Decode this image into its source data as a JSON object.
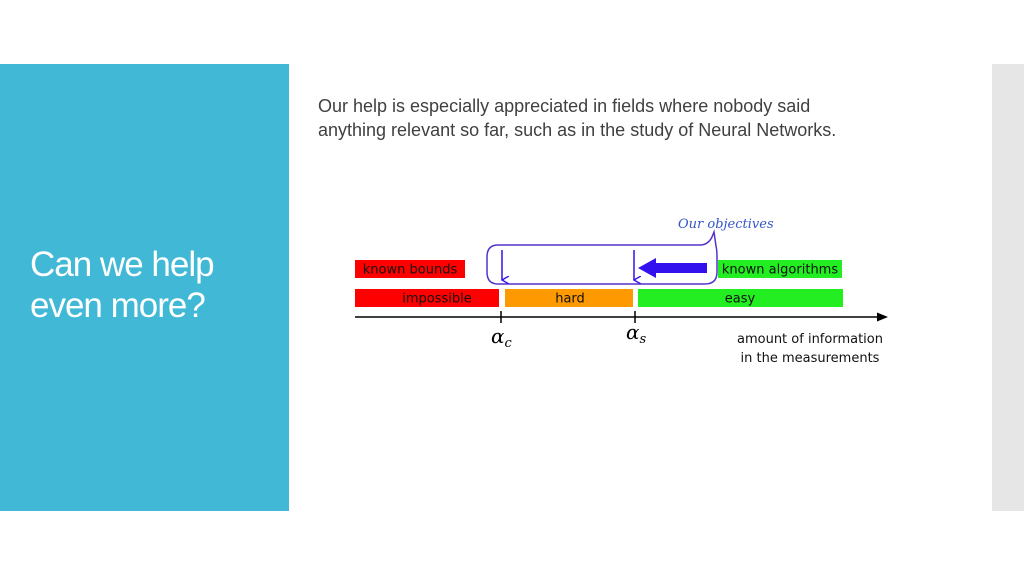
{
  "slide": {
    "title_line1": "Can we help",
    "title_line2": "even more?",
    "body_line1": "Our help is especially appreciated in fields where nobody said",
    "body_line2": "anything relevant so far, such as in the study of Neural Networks.",
    "accent_color": "#41b8d5"
  },
  "diagram": {
    "callout_label": "Our objectives",
    "known_bounds": "known bounds",
    "known_algorithms": "known algorithms",
    "regions": {
      "impossible": "impossible",
      "hard": "hard",
      "easy": "easy"
    },
    "threshold_c": {
      "symbol": "α",
      "subscript": "c"
    },
    "threshold_s": {
      "symbol": "α",
      "subscript": "s"
    },
    "axis_label_line1": "amount of information",
    "axis_label_line2": "in the measurements",
    "colors": {
      "red": "#ff0000",
      "orange": "#ff9900",
      "green": "#22ee22",
      "callout": "#5533cc",
      "arrow": "#3311ee"
    }
  }
}
